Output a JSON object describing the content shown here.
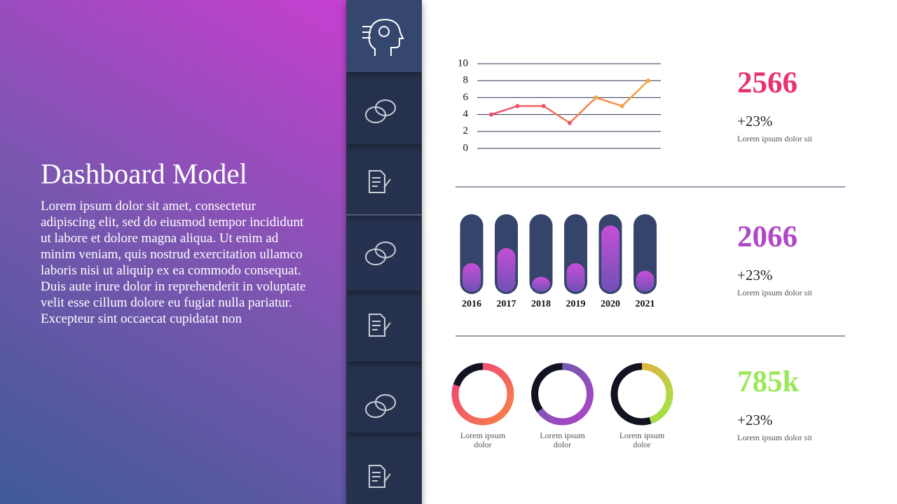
{
  "header": {
    "title": "Dashboard Model",
    "body": "Lorem ipsum dolor sit amet, consectetur adipiscing elit, sed do eiusmod tempor incididunt ut labore et dolore magna aliqua. Ut enim ad minim veniam, quis nostrud exercitation ullamco laboris nisi ut aliquip ex ea commodo consequat. Duis aute irure dolor in reprehenderit in voluptate velit esse cillum dolore eu fugiat nulla pariatur. Excepteur sint occaecat cupidatat non"
  },
  "stats": [
    {
      "value": "2566",
      "change": "+23%",
      "caption": "Lorem ipsum dolor sit",
      "color": "#e8336f"
    },
    {
      "value": "2066",
      "change": "+23%",
      "caption": "Lorem ipsum dolor sit",
      "color": "#b146c9"
    },
    {
      "value": "785k",
      "change": "+23%",
      "caption": "Lorem ipsum dolor sit",
      "color": "#9be85a"
    }
  ],
  "chart_data": [
    {
      "type": "line",
      "values": [
        4,
        5,
        5,
        3,
        6,
        5,
        8
      ],
      "ylim": [
        0,
        10
      ],
      "yticks": [
        0,
        2,
        4,
        6,
        8,
        10
      ],
      "grid": true,
      "gradient": [
        "#ee4e6e",
        "#f7a33c"
      ]
    },
    {
      "type": "pill-bar",
      "categories": [
        "2016",
        "2017",
        "2018",
        "2019",
        "2020",
        "2021"
      ],
      "values": [
        38,
        58,
        20,
        38,
        88,
        28
      ],
      "ylim": [
        0,
        100
      ],
      "track_color": "#34446a",
      "gradient": [
        "#c64fd8",
        "#6f50b5"
      ]
    },
    {
      "type": "donut",
      "label": "Lorem ipsum dolor",
      "values": [
        80,
        20
      ],
      "gradient": [
        "#ee3f78",
        "#f7834a"
      ],
      "track_color": "#111320"
    },
    {
      "type": "donut",
      "label": "Lorem ipsum dolor",
      "values": [
        65,
        35
      ],
      "gradient": [
        "#5e5fa6",
        "#b043c8"
      ],
      "track_color": "#111320"
    },
    {
      "type": "donut",
      "label": "Lorem ipsum dolor",
      "values": [
        45,
        55
      ],
      "gradient": [
        "#f7a03c",
        "#9be84a"
      ],
      "track_color": "#111320"
    }
  ]
}
